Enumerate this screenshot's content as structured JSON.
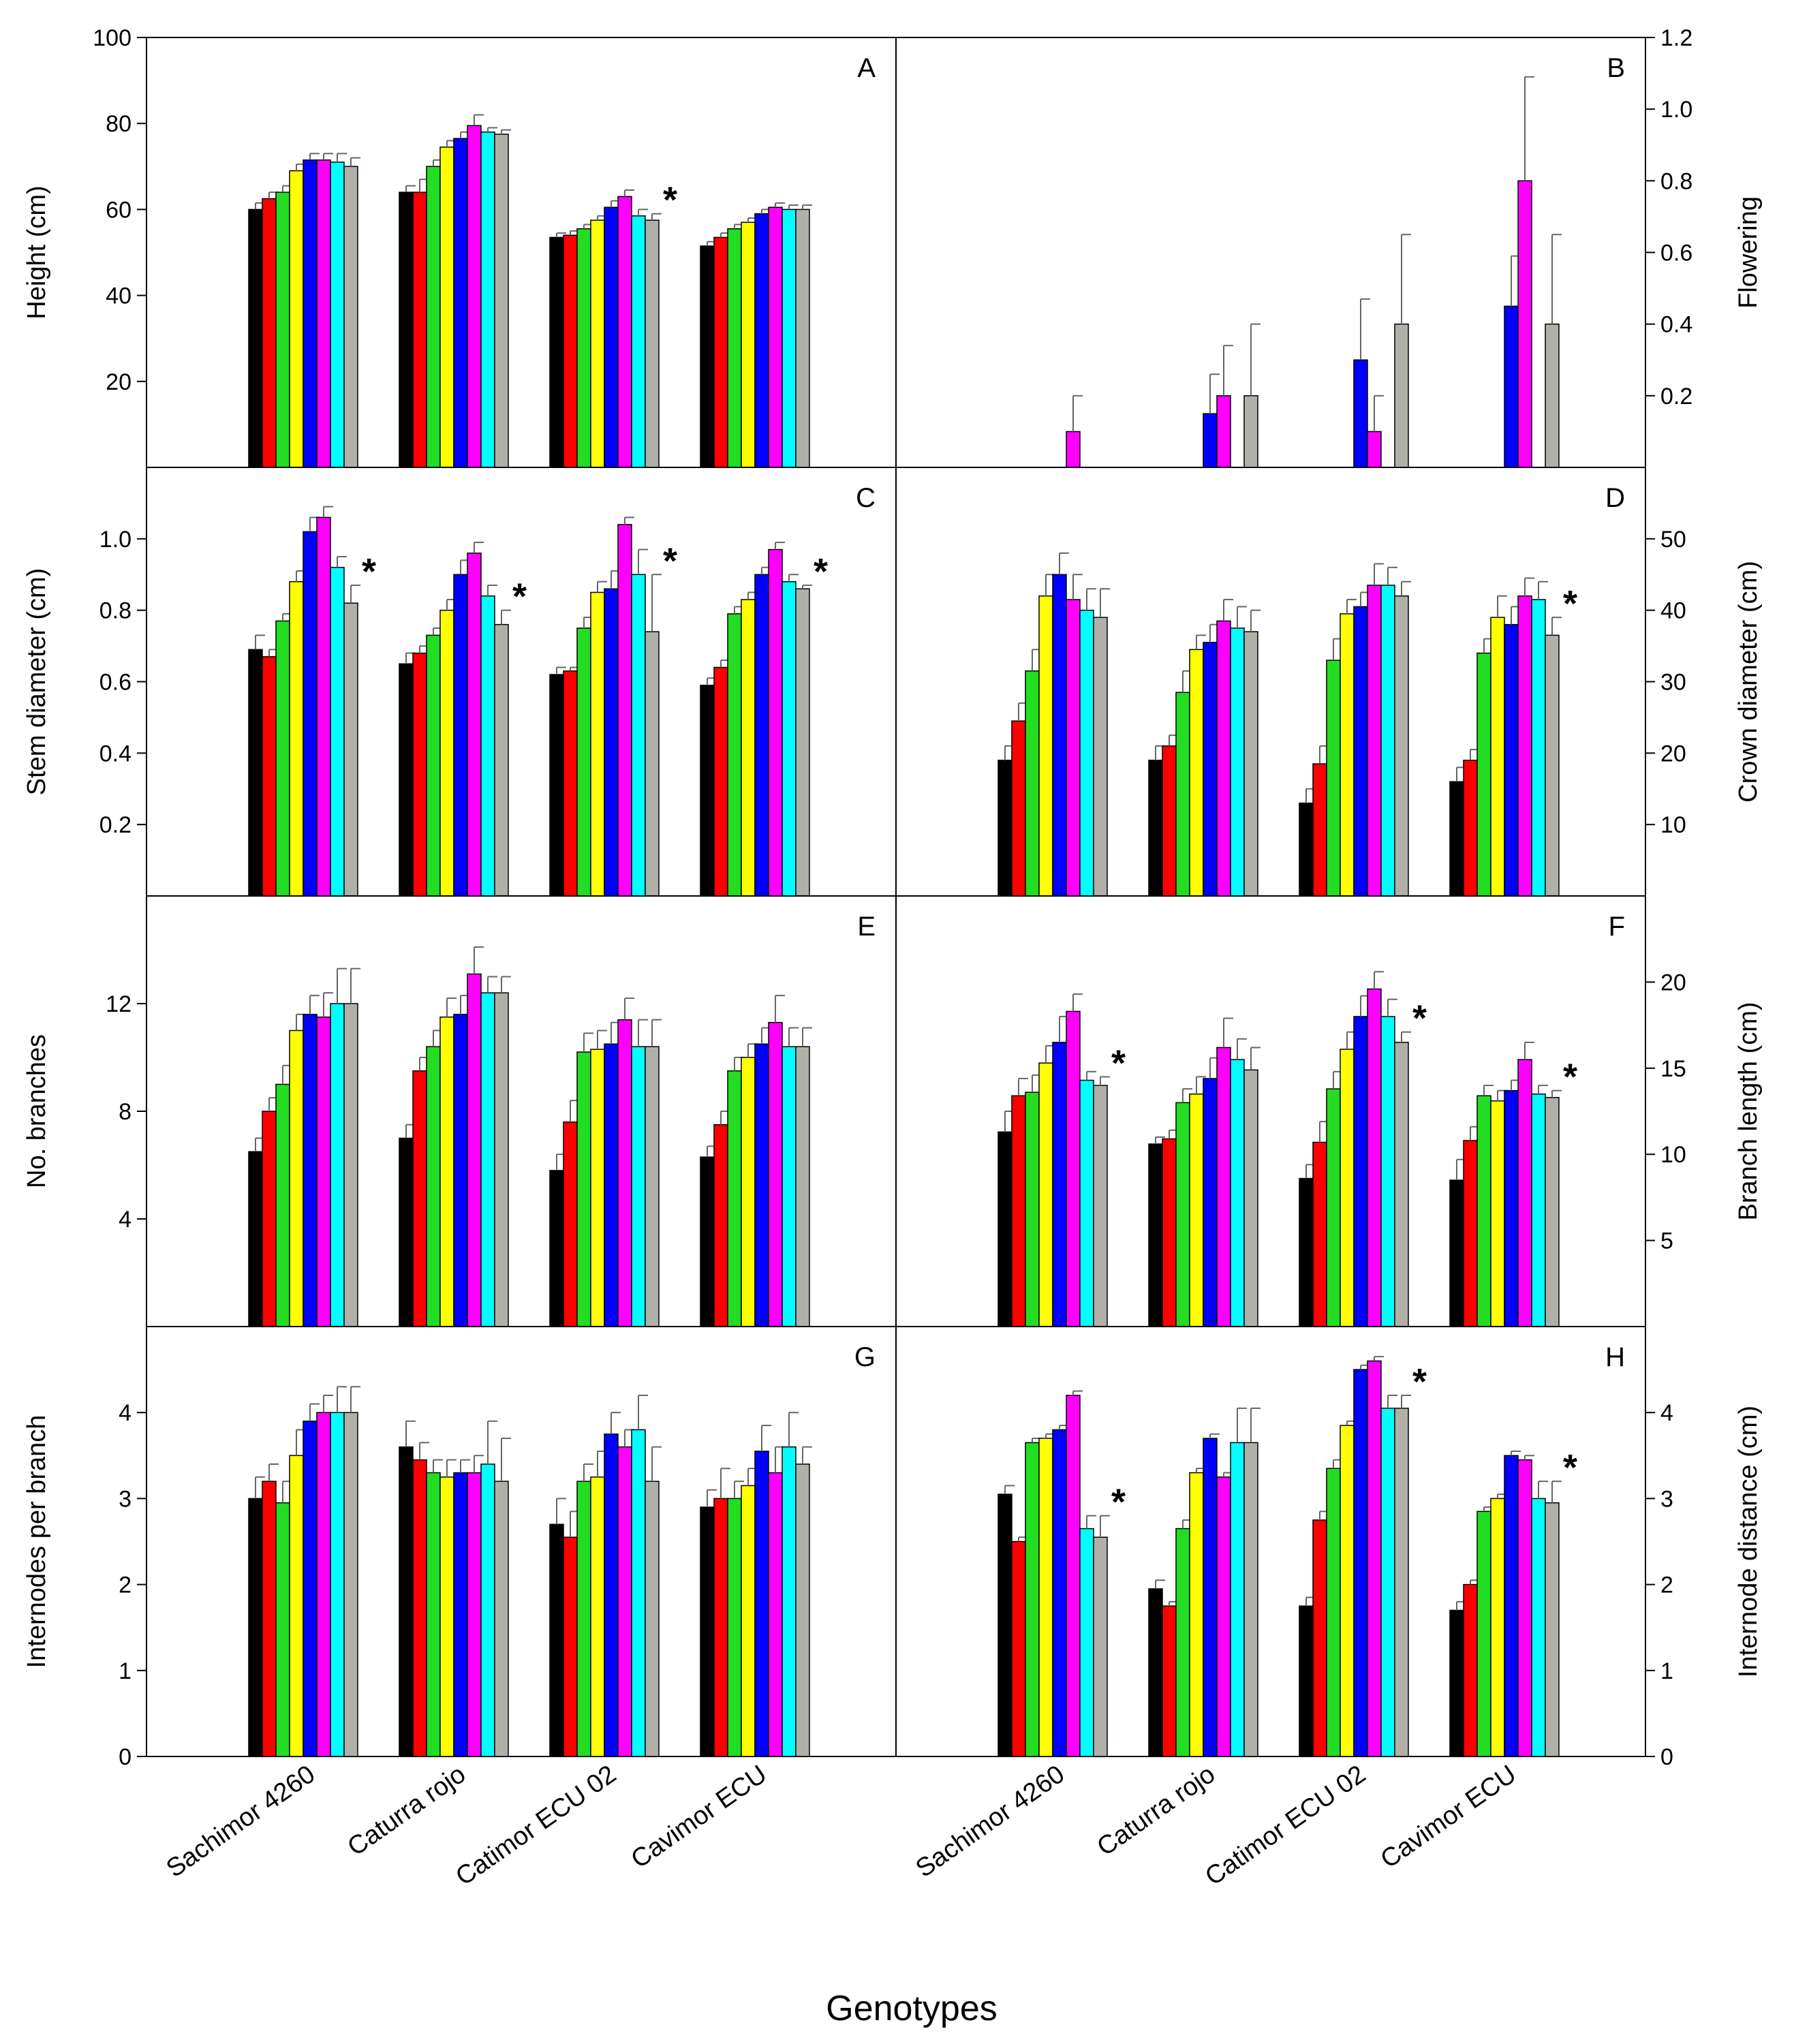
{
  "figure": {
    "xlabel": "Genotypes",
    "categories": [
      "Sachimor 4260",
      "Caturra rojo",
      "Catimor ECU 02",
      "Cavimor ECU"
    ],
    "series_colors": [
      "#000000",
      "#ff0000",
      "#22dd22",
      "#ffff00",
      "#0000ff",
      "#ff00ff",
      "#00ffff",
      "#b0b0a8"
    ]
  },
  "chart_data": [
    {
      "type": "bar",
      "label": "A",
      "title": "",
      "ylabel": "Height (cm)",
      "axis_side": "left",
      "ylim": [
        0,
        100
      ],
      "yticks": [
        20,
        40,
        60,
        80,
        100
      ],
      "tick_labels": [
        "20",
        "40",
        "60",
        "80",
        "100"
      ],
      "categories": [
        "Sachimor 4260",
        "Caturra rojo",
        "Catimor ECU 02",
        "Cavimor ECU"
      ],
      "values": [
        [
          60,
          62.5,
          64,
          69,
          71.5,
          71.5,
          71,
          70
        ],
        [
          64,
          64,
          70,
          74.5,
          76.5,
          79.5,
          78,
          77.5
        ],
        [
          53.5,
          54,
          55.5,
          57.5,
          60.5,
          63,
          58.5,
          57.5
        ],
        [
          51.5,
          53.5,
          55.5,
          57,
          59,
          60.5,
          60,
          60
        ]
      ],
      "errors": [
        [
          1.5,
          1.5,
          1.5,
          1.5,
          1.5,
          1.5,
          2,
          2
        ],
        [
          1.5,
          3,
          1.5,
          1.5,
          1.5,
          2.5,
          1,
          1
        ],
        [
          1,
          1,
          1,
          1,
          1.5,
          1.5,
          1.5,
          1.5
        ],
        [
          1,
          1,
          1,
          1,
          1,
          1,
          1,
          1
        ]
      ],
      "asterisks": [
        "",
        "",
        "*",
        ""
      ]
    },
    {
      "type": "bar",
      "label": "B",
      "title": "",
      "ylabel": "Flowering",
      "axis_side": "right",
      "ylim": [
        0,
        1.2
      ],
      "yticks": [
        0.2,
        0.4,
        0.6,
        0.8,
        1.0,
        1.2
      ],
      "tick_labels": [
        "0.2",
        "0.4",
        "0.6",
        "0.8",
        "1.0",
        "1.2"
      ],
      "categories": [
        "Sachimor 4260",
        "Caturra rojo",
        "Catimor ECU 02",
        "Cavimor ECU"
      ],
      "values": [
        [
          0,
          0,
          0,
          0,
          0,
          0.1,
          0,
          0
        ],
        [
          0,
          0,
          0,
          0,
          0.15,
          0.2,
          0,
          0.2
        ],
        [
          0,
          0,
          0,
          0,
          0.3,
          0.1,
          0,
          0.4
        ],
        [
          0,
          0,
          0,
          0,
          0.45,
          0.8,
          0,
          0.4
        ]
      ],
      "errors": [
        [
          0,
          0,
          0,
          0,
          0,
          0.1,
          0,
          0
        ],
        [
          0,
          0,
          0,
          0,
          0.11,
          0.14,
          0,
          0.2
        ],
        [
          0,
          0,
          0,
          0,
          0.17,
          0.1,
          0,
          0.25
        ],
        [
          0,
          0,
          0,
          0,
          0.14,
          0.29,
          0,
          0.25
        ]
      ],
      "asterisks": [
        "",
        "",
        "",
        ""
      ]
    },
    {
      "type": "bar",
      "label": "C",
      "title": "",
      "ylabel": "Stem diameter (cm)",
      "axis_side": "left",
      "ylim": [
        0,
        1.2
      ],
      "yticks": [
        0.2,
        0.4,
        0.6,
        0.8,
        1.0
      ],
      "tick_labels": [
        "0.2",
        "0.4",
        "0.6",
        "0.8",
        "1.0"
      ],
      "categories": [
        "Sachimor 4260",
        "Caturra rojo",
        "Catimor ECU 02",
        "Cavimor ECU"
      ],
      "values": [
        [
          0.69,
          0.67,
          0.77,
          0.88,
          1.02,
          1.06,
          0.92,
          0.82
        ],
        [
          0.65,
          0.68,
          0.73,
          0.8,
          0.9,
          0.96,
          0.84,
          0.76
        ],
        [
          0.62,
          0.63,
          0.75,
          0.85,
          0.86,
          1.04,
          0.9,
          0.74
        ],
        [
          0.59,
          0.64,
          0.79,
          0.83,
          0.9,
          0.97,
          0.88,
          0.86
        ]
      ],
      "errors": [
        [
          0.04,
          0.02,
          0.02,
          0.03,
          0.04,
          0.03,
          0.03,
          0.05
        ],
        [
          0.03,
          0.02,
          0.02,
          0.03,
          0.04,
          0.03,
          0.03,
          0.04
        ],
        [
          0.02,
          0.01,
          0.03,
          0.03,
          0.05,
          0.02,
          0.07,
          0.16
        ],
        [
          0.02,
          0.02,
          0.02,
          0.02,
          0.02,
          0.02,
          0.02,
          0.01
        ]
      ],
      "asterisks": [
        "*",
        "*",
        "*",
        "*"
      ]
    },
    {
      "type": "bar",
      "label": "D",
      "title": "",
      "ylabel": "Crown diameter (cm)",
      "axis_side": "right",
      "ylim": [
        0,
        60
      ],
      "yticks": [
        10,
        20,
        30,
        40,
        50
      ],
      "tick_labels": [
        "10",
        "20",
        "30",
        "40",
        "50"
      ],
      "categories": [
        "Sachimor 4260",
        "Caturra rojo",
        "Catimor ECU 02",
        "Cavimor ECU"
      ],
      "values": [
        [
          19,
          24.5,
          31.5,
          42,
          45,
          41.5,
          40,
          39
        ],
        [
          19,
          21,
          28.5,
          34.5,
          35.5,
          38.5,
          37.5,
          37
        ],
        [
          13,
          18.5,
          33,
          39.5,
          40.5,
          43.5,
          43.5,
          42
        ],
        [
          16,
          19,
          34,
          39,
          38,
          42,
          41.5,
          36.5
        ]
      ],
      "errors": [
        [
          2,
          2.5,
          3,
          3,
          3,
          3.5,
          3,
          4
        ],
        [
          2,
          1.5,
          3,
          2,
          2.5,
          3,
          3,
          3
        ],
        [
          2,
          2.5,
          3,
          2,
          2,
          3,
          2.5,
          2
        ],
        [
          2,
          1.5,
          2,
          3,
          2.5,
          2.5,
          2.5,
          2.5
        ]
      ],
      "asterisks": [
        "",
        "",
        "",
        "*"
      ]
    },
    {
      "type": "bar",
      "label": "E",
      "title": "",
      "ylabel": "No. branches",
      "axis_side": "left",
      "ylim": [
        0,
        16
      ],
      "yticks": [
        4,
        8,
        12
      ],
      "tick_labels": [
        "4",
        "8",
        "12"
      ],
      "categories": [
        "Sachimor 4260",
        "Caturra rojo",
        "Catimor ECU 02",
        "Cavimor ECU"
      ],
      "values": [
        [
          6.5,
          8,
          9,
          11,
          11.6,
          11.5,
          12,
          12
        ],
        [
          7,
          9.5,
          10.4,
          11.5,
          11.6,
          13.1,
          12.4,
          12.4
        ],
        [
          5.8,
          7.6,
          10.2,
          10.3,
          10.5,
          11.4,
          10.4,
          10.4
        ],
        [
          6.3,
          7.5,
          9.5,
          10,
          10.5,
          11.3,
          10.4,
          10.4
        ]
      ],
      "errors": [
        [
          0.5,
          0.5,
          0.7,
          0.6,
          0.7,
          0.9,
          1.3,
          1.3
        ],
        [
          0.5,
          0.5,
          0.6,
          0.7,
          0.7,
          1.0,
          0.6,
          0.6
        ],
        [
          0.6,
          0.8,
          0.7,
          0.7,
          0.8,
          0.8,
          1.0,
          1.0
        ],
        [
          0.4,
          0.5,
          0.5,
          0.5,
          0.6,
          1.0,
          0.7,
          0.7
        ]
      ],
      "asterisks": [
        "",
        "",
        "",
        ""
      ]
    },
    {
      "type": "bar",
      "label": "F",
      "title": "",
      "ylabel": "Branch length (cm)",
      "axis_side": "right",
      "ylim": [
        0,
        25
      ],
      "yticks": [
        5,
        10,
        15,
        20
      ],
      "tick_labels": [
        "5",
        "10",
        "15",
        "20"
      ],
      "categories": [
        "Sachimor 4260",
        "Caturra rojo",
        "Catimor ECU 02",
        "Cavimor ECU"
      ],
      "values": [
        [
          11.3,
          13.4,
          13.6,
          15.3,
          16.5,
          18.3,
          14.3,
          14
        ],
        [
          10.6,
          10.9,
          13,
          13.5,
          14.4,
          16.2,
          15.5,
          14.9
        ],
        [
          8.6,
          10.7,
          13.8,
          16.1,
          18,
          19.6,
          18,
          16.5
        ],
        [
          8.5,
          10.8,
          13.4,
          13.1,
          13.7,
          15.5,
          13.5,
          13.3
        ]
      ],
      "errors": [
        [
          1.2,
          1.0,
          1.0,
          1.0,
          1.5,
          1.0,
          0.5,
          0.5
        ],
        [
          0.4,
          0.5,
          0.8,
          1.0,
          1.2,
          1.7,
          1.2,
          1.3
        ],
        [
          0.8,
          1.2,
          1.0,
          1.0,
          1.2,
          1.0,
          1.0,
          0.6
        ],
        [
          1.2,
          0.8,
          0.6,
          0.6,
          0.6,
          1.0,
          0.5,
          0.4
        ]
      ],
      "asterisks": [
        "*",
        "",
        "*",
        "*"
      ]
    },
    {
      "type": "bar",
      "label": "G",
      "title": "",
      "ylabel": "Internodes per branch",
      "axis_side": "left",
      "ylim": [
        0,
        5
      ],
      "yticks": [
        0,
        1,
        2,
        3,
        4
      ],
      "tick_labels": [
        "0",
        "1",
        "2",
        "3",
        "4"
      ],
      "categories": [
        "Sachimor 4260",
        "Caturra rojo",
        "Catimor ECU 02",
        "Cavimor ECU"
      ],
      "values": [
        [
          3,
          3.2,
          2.95,
          3.5,
          3.9,
          4,
          4,
          4
        ],
        [
          3.6,
          3.45,
          3.3,
          3.25,
          3.3,
          3.3,
          3.4,
          3.2
        ],
        [
          2.7,
          2.55,
          3.2,
          3.25,
          3.75,
          3.6,
          3.8,
          3.2
        ],
        [
          2.9,
          3,
          3,
          3.15,
          3.55,
          3.3,
          3.6,
          3.4
        ]
      ],
      "errors": [
        [
          0.25,
          0.2,
          0.25,
          0.3,
          0.2,
          0.2,
          0.3,
          0.3
        ],
        [
          0.3,
          0.2,
          0.15,
          0.2,
          0.15,
          0.2,
          0.5,
          0.5
        ],
        [
          0.3,
          0.3,
          0.2,
          0.3,
          0.25,
          0.2,
          0.4,
          0.4
        ],
        [
          0.2,
          0.35,
          0.2,
          0.2,
          0.3,
          0.3,
          0.4,
          0.2
        ]
      ],
      "asterisks": [
        "",
        "",
        "",
        ""
      ]
    },
    {
      "type": "bar",
      "label": "H",
      "title": "",
      "ylabel": "Internode distance (cm)",
      "axis_side": "right",
      "ylim": [
        0,
        5
      ],
      "yticks": [
        0,
        1,
        2,
        3,
        4
      ],
      "tick_labels": [
        "0",
        "1",
        "2",
        "3",
        "4"
      ],
      "categories": [
        "Sachimor 4260",
        "Caturra rojo",
        "Catimor ECU 02",
        "Cavimor ECU"
      ],
      "values": [
        [
          3.05,
          2.5,
          3.65,
          3.7,
          3.8,
          4.2,
          2.65,
          2.55
        ],
        [
          1.95,
          1.75,
          2.65,
          3.3,
          3.7,
          3.25,
          3.65,
          3.65
        ],
        [
          1.75,
          2.75,
          3.35,
          3.85,
          4.5,
          4.6,
          4.05,
          4.05
        ],
        [
          1.7,
          2,
          2.85,
          3,
          3.5,
          3.45,
          3,
          2.95
        ]
      ],
      "errors": [
        [
          0.1,
          0.05,
          0.05,
          0.05,
          0.05,
          0.05,
          0.15,
          0.25
        ],
        [
          0.1,
          0.05,
          0.1,
          0.05,
          0.05,
          0.05,
          0.4,
          0.4
        ],
        [
          0.1,
          0.1,
          0.1,
          0.05,
          0.05,
          0.05,
          0.15,
          0.15
        ],
        [
          0.1,
          0.05,
          0.05,
          0.05,
          0.05,
          0.05,
          0.2,
          0.25
        ]
      ],
      "asterisks": [
        "*",
        "",
        "*",
        "*"
      ]
    }
  ]
}
